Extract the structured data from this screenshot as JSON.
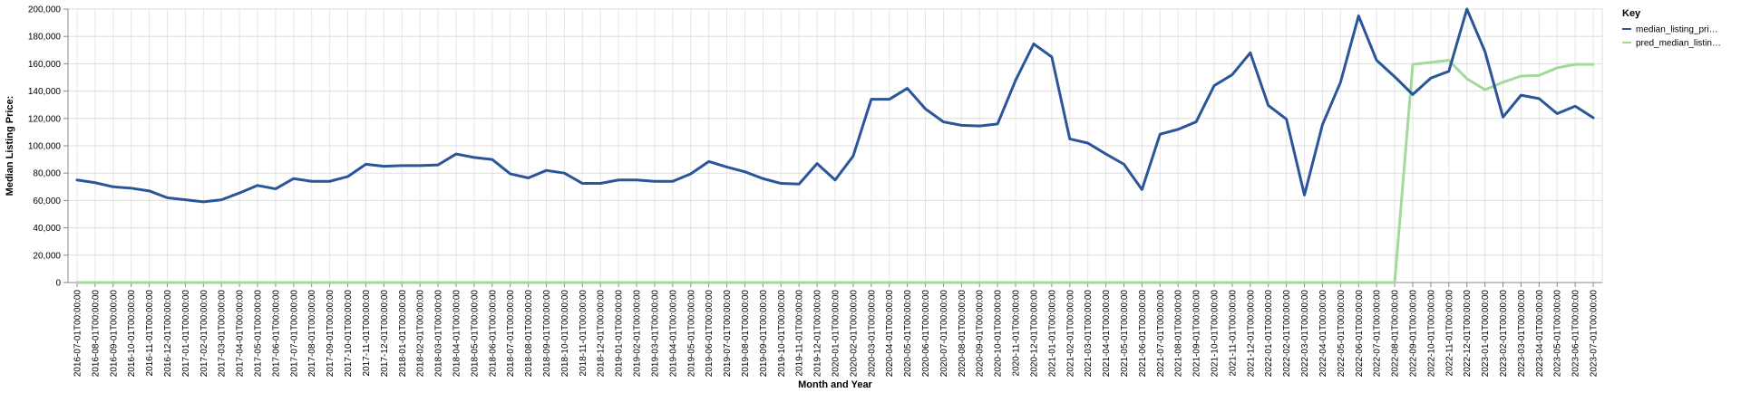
{
  "chart_data": {
    "type": "line",
    "xlabel": "Month and Year",
    "ylabel": "Median Listing Price:",
    "ylim": [
      0,
      200000
    ],
    "yticks": [
      0,
      20000,
      40000,
      60000,
      80000,
      100000,
      120000,
      140000,
      160000,
      180000,
      200000
    ],
    "ytick_labels": [
      "0",
      "20,000",
      "40,000",
      "60,000",
      "80,000",
      "100,000",
      "120,000",
      "140,000",
      "160,000",
      "180,000",
      "200,000"
    ],
    "grid": true,
    "legend": {
      "title": "Key",
      "placement": "top-right",
      "entries": [
        "median_listing_pri…",
        "pred_median_listin…"
      ]
    },
    "x": [
      "2016-07-01T00:00:00",
      "2016-08-01T00:00:00",
      "2016-09-01T00:00:00",
      "2016-10-01T00:00:00",
      "2016-11-01T00:00:00",
      "2016-12-01T00:00:00",
      "2017-01-01T00:00:00",
      "2017-02-01T00:00:00",
      "2017-03-01T00:00:00",
      "2017-04-01T00:00:00",
      "2017-05-01T00:00:00",
      "2017-06-01T00:00:00",
      "2017-07-01T00:00:00",
      "2017-08-01T00:00:00",
      "2017-09-01T00:00:00",
      "2017-10-01T00:00:00",
      "2017-11-01T00:00:00",
      "2017-12-01T00:00:00",
      "2018-01-01T00:00:00",
      "2018-02-01T00:00:00",
      "2018-03-01T00:00:00",
      "2018-04-01T00:00:00",
      "2018-05-01T00:00:00",
      "2018-06-01T00:00:00",
      "2018-07-01T00:00:00",
      "2018-08-01T00:00:00",
      "2018-09-01T00:00:00",
      "2018-10-01T00:00:00",
      "2018-11-01T00:00:00",
      "2018-12-01T00:00:00",
      "2019-01-01T00:00:00",
      "2019-02-01T00:00:00",
      "2019-03-01T00:00:00",
      "2019-04-01T00:00:00",
      "2019-05-01T00:00:00",
      "2019-06-01T00:00:00",
      "2019-07-01T00:00:00",
      "2019-08-01T00:00:00",
      "2019-09-01T00:00:00",
      "2019-10-01T00:00:00",
      "2019-11-01T00:00:00",
      "2019-12-01T00:00:00",
      "2020-01-01T00:00:00",
      "2020-02-01T00:00:00",
      "2020-03-01T00:00:00",
      "2020-04-01T00:00:00",
      "2020-05-01T00:00:00",
      "2020-06-01T00:00:00",
      "2020-07-01T00:00:00",
      "2020-08-01T00:00:00",
      "2020-09-01T00:00:00",
      "2020-10-01T00:00:00",
      "2020-11-01T00:00:00",
      "2020-12-01T00:00:00",
      "2021-01-01T00:00:00",
      "2021-02-01T00:00:00",
      "2021-03-01T00:00:00",
      "2021-04-01T00:00:00",
      "2021-05-01T00:00:00",
      "2021-06-01T00:00:00",
      "2021-07-01T00:00:00",
      "2021-08-01T00:00:00",
      "2021-09-01T00:00:00",
      "2021-10-01T00:00:00",
      "2021-11-01T00:00:00",
      "2021-12-01T00:00:00",
      "2022-01-01T00:00:00",
      "2022-02-01T00:00:00",
      "2022-03-01T00:00:00",
      "2022-04-01T00:00:00",
      "2022-05-01T00:00:00",
      "2022-06-01T00:00:00",
      "2022-07-01T00:00:00",
      "2022-08-01T00:00:00",
      "2022-09-01T00:00:00",
      "2022-10-01T00:00:00",
      "2022-11-01T00:00:00",
      "2022-12-01T00:00:00",
      "2023-01-01T00:00:00",
      "2023-02-01T00:00:00",
      "2023-03-01T00:00:00",
      "2023-04-01T00:00:00",
      "2023-05-01T00:00:00",
      "2023-06-01T00:00:00",
      "2023-07-01T00:00:00"
    ],
    "series": [
      {
        "name": "median_listing_pri…",
        "color": "#2a5599",
        "values": [
          75000,
          73000,
          70000,
          69000,
          67000,
          62000,
          60500,
          59000,
          60500,
          65500,
          71000,
          68500,
          76000,
          74000,
          74000,
          77500,
          86500,
          85000,
          85500,
          85500,
          86000,
          94000,
          91500,
          90000,
          79500,
          76500,
          82000,
          80000,
          72500,
          72500,
          75000,
          75000,
          74000,
          74000,
          79500,
          88500,
          84500,
          81000,
          76000,
          72500,
          72000,
          87000,
          75000,
          92500,
          134000,
          134000,
          142000,
          127000,
          117500,
          115000,
          114500,
          116000,
          148000,
          174500,
          165000,
          105000,
          102000,
          94000,
          86500,
          68000,
          108500,
          112000,
          117500,
          144000,
          152000,
          168000,
          129500,
          119500,
          64000,
          115500,
          146500,
          195000,
          162500,
          150500,
          137500,
          149500,
          154500,
          200000,
          169000,
          121000,
          137000,
          134500,
          123500,
          129000,
          120500
        ]
      },
      {
        "name": "pred_median_listin…",
        "color": "#a3d99a",
        "values": [
          0,
          0,
          0,
          0,
          0,
          0,
          0,
          0,
          0,
          0,
          0,
          0,
          0,
          0,
          0,
          0,
          0,
          0,
          0,
          0,
          0,
          0,
          0,
          0,
          0,
          0,
          0,
          0,
          0,
          0,
          0,
          0,
          0,
          0,
          0,
          0,
          0,
          0,
          0,
          0,
          0,
          0,
          0,
          0,
          0,
          0,
          0,
          0,
          0,
          0,
          0,
          0,
          0,
          0,
          0,
          0,
          0,
          0,
          0,
          0,
          0,
          0,
          0,
          0,
          0,
          0,
          0,
          0,
          0,
          0,
          0,
          0,
          0,
          0,
          159500,
          161000,
          162500,
          149000,
          141000,
          146500,
          151000,
          151500,
          157000,
          159500,
          159500
        ]
      }
    ]
  }
}
